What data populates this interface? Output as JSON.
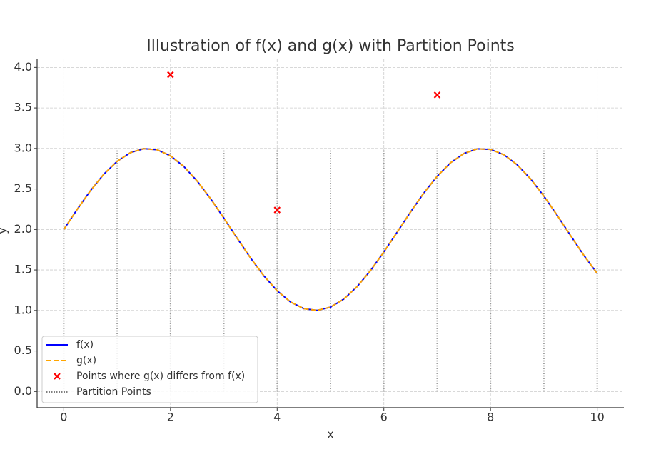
{
  "chart_data": {
    "type": "line",
    "title": "Illustration of f(x) and g(x) with Partition Points",
    "x_label": "x",
    "y_label": "y",
    "x": [
      0,
      0.25,
      0.5,
      0.75,
      1,
      1.25,
      1.5,
      1.75,
      2,
      2.25,
      2.5,
      2.75,
      3,
      3.25,
      3.5,
      3.75,
      4,
      4.25,
      4.5,
      4.75,
      5,
      5.25,
      5.5,
      5.75,
      6,
      6.25,
      6.5,
      6.75,
      7,
      7.25,
      7.5,
      7.75,
      8,
      8.25,
      8.5,
      8.75,
      9,
      9.25,
      9.5,
      9.75,
      10
    ],
    "series": [
      {
        "name": "f(x)",
        "color": "#0000ff",
        "dashed": false,
        "values": [
          2.0,
          2.247,
          2.479,
          2.682,
          2.841,
          2.949,
          2.997,
          2.984,
          2.909,
          2.778,
          2.598,
          2.382,
          2.141,
          1.892,
          1.649,
          1.428,
          1.243,
          1.105,
          1.022,
          1.001,
          1.041,
          1.141,
          1.295,
          1.492,
          1.721,
          1.967,
          2.215,
          2.45,
          2.657,
          2.823,
          2.938,
          2.995,
          2.989,
          2.923,
          2.798,
          2.625,
          2.412,
          2.174,
          1.925,
          1.68,
          1.456
        ]
      },
      {
        "name": "g(x)",
        "color": "#ffa500",
        "dashed": true,
        "values": [
          2.0,
          2.247,
          2.479,
          2.682,
          2.841,
          2.949,
          2.997,
          2.984,
          2.909,
          2.778,
          2.598,
          2.382,
          2.141,
          1.892,
          1.649,
          1.428,
          1.243,
          1.105,
          1.022,
          1.001,
          1.041,
          1.141,
          1.295,
          1.492,
          1.721,
          1.967,
          2.215,
          2.45,
          2.657,
          2.823,
          2.938,
          2.995,
          2.989,
          2.923,
          2.798,
          2.625,
          2.412,
          2.174,
          1.925,
          1.68,
          1.456
        ]
      }
    ],
    "scatter": {
      "name": "Points where g(x) differs from f(x)",
      "color": "#ff0000",
      "x": [
        2,
        4,
        7
      ],
      "values": [
        3.91,
        2.24,
        3.66
      ]
    },
    "partition": {
      "name": "Partition Points",
      "color": "#808080",
      "x": [
        0,
        1,
        2,
        3,
        4,
        5,
        6,
        7,
        8,
        9,
        10
      ],
      "ymin": 0,
      "ymax": 3
    },
    "xlim": [
      -0.5,
      10.5
    ],
    "ylim": [
      -0.2,
      4.1
    ],
    "xticks": [
      0,
      2,
      4,
      6,
      8,
      10
    ],
    "yticks": [
      {
        "value": 0,
        "label": "0.0"
      },
      0.5,
      {
        "value": 1,
        "label": "1.0"
      },
      1.5,
      {
        "value": 2,
        "label": "2.0"
      },
      2.5,
      {
        "value": 3,
        "label": "3.0"
      },
      3.5,
      {
        "value": 4,
        "label": "4.0"
      }
    ],
    "grid": true,
    "legend": "lower left"
  }
}
